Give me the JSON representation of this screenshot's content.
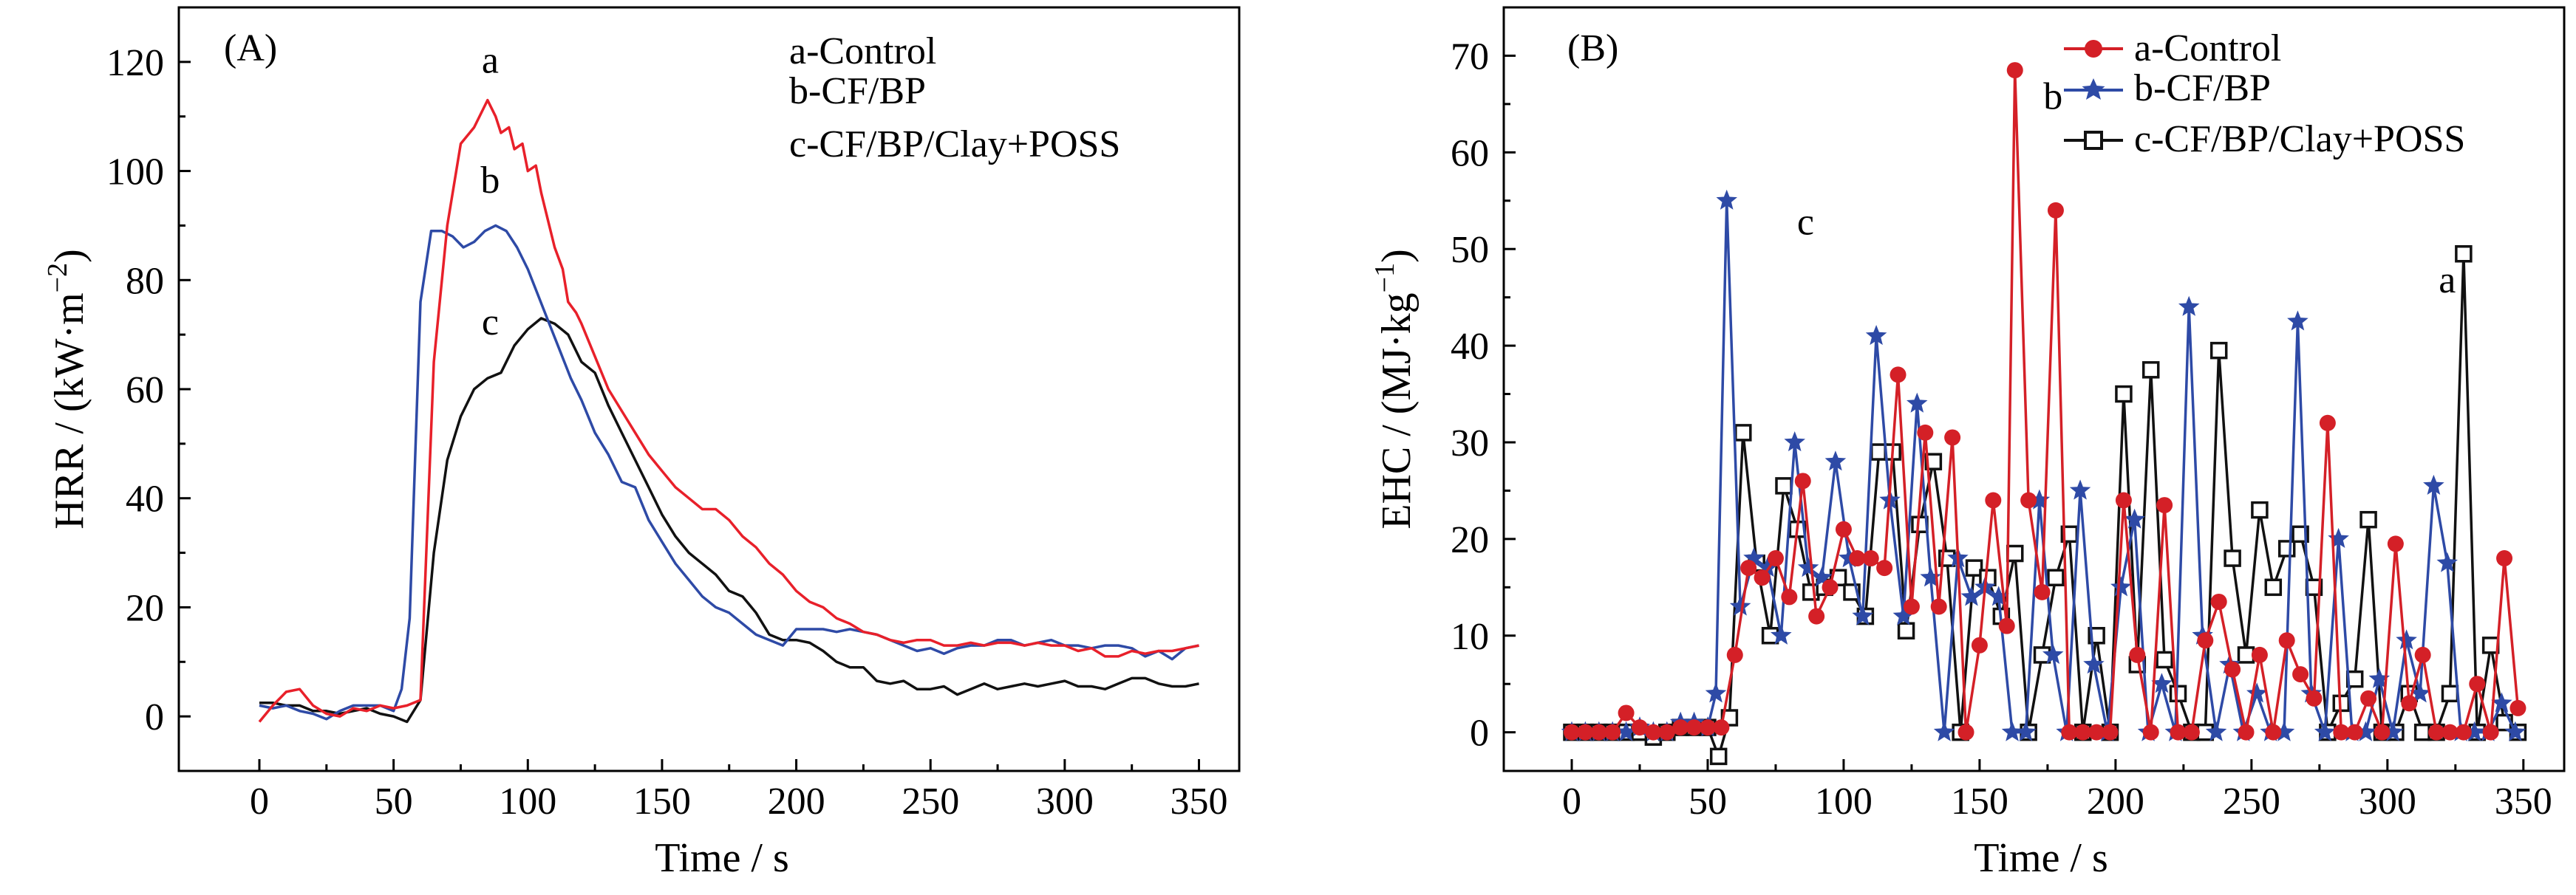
{
  "chart_data": [
    {
      "type": "line",
      "panel_label": "(A)",
      "xlabel": "Time / s",
      "ylabel_base": "HRR / (kW·m",
      "ylabel_sup": "−2",
      "ylabel_end": ")",
      "xlim": [
        -30,
        365
      ],
      "ylim": [
        -10,
        130
      ],
      "xticks": [
        0,
        50,
        100,
        150,
        200,
        250,
        300,
        350
      ],
      "yticks": [
        0,
        20,
        40,
        60,
        80,
        100,
        120
      ],
      "legend": [
        "a-Control",
        "b-CF/BP",
        "c-CF/BP/Clay+POSS"
      ],
      "annotations": [
        {
          "text": "a",
          "x": 86,
          "y": 118
        },
        {
          "text": "b",
          "x": 86,
          "y": 96
        },
        {
          "text": "c",
          "x": 86,
          "y": 70
        }
      ],
      "series": [
        {
          "name": "a-Control",
          "color": "#e8202a",
          "x": [
            0,
            5,
            10,
            15,
            20,
            25,
            30,
            35,
            40,
            45,
            50,
            55,
            60,
            65,
            70,
            75,
            80,
            85,
            88,
            90,
            93,
            95,
            98,
            100,
            103,
            105,
            108,
            110,
            113,
            115,
            118,
            120,
            125,
            130,
            135,
            140,
            145,
            150,
            155,
            160,
            165,
            170,
            175,
            180,
            185,
            190,
            195,
            200,
            205,
            210,
            215,
            220,
            225,
            230,
            235,
            240,
            245,
            250,
            255,
            260,
            265,
            270,
            275,
            280,
            285,
            290,
            295,
            300,
            305,
            310,
            315,
            320,
            325,
            330,
            335,
            340,
            345,
            350
          ],
          "y": [
            -1,
            2,
            4.5,
            5,
            2,
            0.5,
            0,
            1.5,
            1,
            2,
            1.5,
            2,
            3,
            65,
            90,
            105,
            108,
            113,
            110,
            107,
            108,
            104,
            105,
            100,
            101,
            96,
            90,
            86,
            82,
            76,
            74,
            72,
            66,
            60,
            56,
            52,
            48,
            45,
            42,
            40,
            38,
            38,
            36,
            33,
            31,
            28,
            26,
            23,
            21,
            20,
            18,
            17,
            15.5,
            15,
            14,
            13.5,
            14,
            14,
            13,
            13,
            13.5,
            13,
            13.5,
            13.5,
            13,
            13.5,
            13,
            13,
            12,
            12.5,
            11,
            11,
            12,
            11.5,
            12,
            12,
            12.5,
            13
          ]
        },
        {
          "name": "b-CF/BP",
          "color": "#2e4aa6",
          "x": [
            0,
            5,
            10,
            15,
            20,
            25,
            30,
            35,
            40,
            45,
            50,
            53,
            56,
            60,
            64,
            68,
            72,
            76,
            80,
            84,
            88,
            92,
            96,
            100,
            104,
            108,
            112,
            116,
            120,
            125,
            130,
            135,
            140,
            145,
            150,
            155,
            160,
            165,
            170,
            175,
            180,
            185,
            190,
            195,
            200,
            205,
            210,
            215,
            220,
            225,
            230,
            235,
            240,
            245,
            250,
            255,
            260,
            265,
            270,
            275,
            280,
            285,
            290,
            295,
            300,
            305,
            310,
            315,
            320,
            325,
            330,
            335,
            340,
            345,
            350
          ],
          "y": [
            2,
            1.5,
            2,
            1,
            0.5,
            -0.5,
            1,
            2,
            2,
            2,
            1,
            5,
            18,
            76,
            89,
            89,
            88,
            86,
            87,
            89,
            90,
            89,
            86,
            82,
            77,
            72,
            67,
            62,
            58,
            52,
            48,
            43,
            42,
            36,
            32,
            28,
            25,
            22,
            20,
            19,
            17,
            15,
            14,
            13,
            16,
            16,
            16,
            15.5,
            16,
            15.5,
            15,
            14,
            13,
            12,
            12.5,
            11.5,
            12.5,
            13,
            13,
            14,
            14,
            13,
            13.5,
            14,
            13,
            13,
            12.5,
            13,
            13,
            12.5,
            11,
            12,
            10.5,
            12.5,
            13
          ]
        },
        {
          "name": "c-CF/BP/Clay+POSS",
          "color": "#111111",
          "x": [
            0,
            5,
            10,
            15,
            20,
            25,
            30,
            35,
            40,
            45,
            50,
            55,
            60,
            65,
            70,
            75,
            80,
            85,
            90,
            95,
            100,
            105,
            110,
            115,
            120,
            125,
            130,
            135,
            140,
            145,
            150,
            155,
            160,
            165,
            170,
            175,
            180,
            185,
            190,
            195,
            200,
            205,
            210,
            215,
            220,
            225,
            230,
            235,
            240,
            245,
            250,
            255,
            260,
            265,
            270,
            275,
            280,
            285,
            290,
            295,
            300,
            305,
            310,
            315,
            320,
            325,
            330,
            335,
            340,
            345,
            350
          ],
          "y": [
            2.5,
            2.5,
            2,
            2,
            1,
            1,
            0.5,
            1,
            1.5,
            0.5,
            0,
            -1,
            3,
            30,
            47,
            55,
            60,
            62,
            63,
            68,
            71,
            73,
            72,
            70,
            65,
            63,
            57,
            52,
            47,
            42,
            37,
            33,
            30,
            28,
            26,
            23,
            22,
            19,
            15,
            14,
            14,
            13.5,
            12,
            10,
            9,
            9,
            6.5,
            6,
            6.5,
            5,
            5,
            5.5,
            4,
            5,
            6,
            5,
            5.5,
            6,
            5.5,
            6,
            6.5,
            5.5,
            5.5,
            5,
            6,
            7,
            7,
            6,
            5.5,
            5.5,
            6
          ]
        }
      ]
    },
    {
      "type": "line",
      "panel_label": "(B)",
      "xlabel": "Time / s",
      "ylabel_base": "EHC / (MJ·kg",
      "ylabel_sup": "−1",
      "ylabel_end": ")",
      "xlim": [
        -25,
        365
      ],
      "ylim": [
        -4,
        75
      ],
      "xticks": [
        0,
        50,
        100,
        150,
        200,
        250,
        300,
        350
      ],
      "yticks": [
        0,
        10,
        20,
        30,
        40,
        50,
        60,
        70
      ],
      "legend": [
        "a-Control",
        "b-CF/BP",
        "c-CF/BP/Clay+POSS"
      ],
      "annotations": [
        {
          "text": "b",
          "x": 177,
          "y": 64.5
        },
        {
          "text": "c",
          "x": 86,
          "y": 51.5
        },
        {
          "text": "a",
          "x": 322,
          "y": 45.5
        }
      ],
      "series": [
        {
          "name": "a-Control",
          "color": "#d42027",
          "marker": "circle",
          "x": [
            0,
            5,
            10,
            15,
            20,
            25,
            30,
            35,
            40,
            45,
            50,
            55,
            60,
            65,
            70,
            75,
            80,
            85,
            90,
            95,
            100,
            105,
            110,
            115,
            120,
            125,
            130,
            135,
            140,
            145,
            150,
            155,
            160,
            163,
            168,
            173,
            178,
            183,
            188,
            193,
            198,
            203,
            208,
            213,
            218,
            223,
            228,
            233,
            238,
            243,
            248,
            253,
            258,
            263,
            268,
            273,
            278,
            283,
            288,
            293,
            298,
            303,
            308,
            313,
            318,
            323,
            328,
            333,
            338,
            343,
            348
          ],
          "y": [
            0,
            0,
            0,
            0,
            2,
            0.5,
            0,
            0,
            0.5,
            0.5,
            0.5,
            0.5,
            8,
            17,
            16,
            18,
            14,
            26,
            12,
            15,
            21,
            18,
            18,
            17,
            37,
            13,
            31,
            13,
            30.5,
            0,
            9,
            24,
            11,
            68.5,
            24,
            14.5,
            54,
            0,
            0,
            0,
            0,
            24,
            8,
            0,
            23.5,
            0,
            0,
            9.5,
            13.5,
            6.5,
            0,
            8,
            0,
            9.5,
            6,
            3.5,
            32,
            0,
            0,
            3.5,
            0,
            19.5,
            3,
            8,
            0,
            0,
            0,
            5,
            0,
            18,
            2.5
          ]
        },
        {
          "name": "b-CF/BP",
          "color": "#2e4aa6",
          "marker": "star",
          "x": [
            0,
            5,
            10,
            15,
            20,
            25,
            30,
            35,
            40,
            45,
            50,
            53,
            57,
            62,
            67,
            72,
            77,
            82,
            87,
            92,
            97,
            102,
            107,
            112,
            117,
            122,
            127,
            132,
            137,
            142,
            147,
            152,
            157,
            162,
            167,
            172,
            177,
            182,
            187,
            192,
            197,
            202,
            207,
            212,
            217,
            222,
            227,
            232,
            237,
            242,
            247,
            252,
            257,
            262,
            267,
            272,
            277,
            282,
            287,
            292,
            297,
            302,
            307,
            312,
            317,
            322,
            327,
            332,
            337,
            342,
            347
          ],
          "y": [
            0,
            0,
            0,
            0,
            0,
            0.5,
            0,
            0,
            1,
            1,
            0.5,
            4,
            55,
            13,
            18,
            17,
            10,
            30,
            17,
            16,
            28,
            18,
            12,
            41,
            24,
            12,
            34,
            16,
            0,
            18,
            14,
            15,
            14,
            0,
            0,
            24,
            8,
            0,
            25,
            7,
            0,
            15,
            22,
            0,
            5,
            0,
            44,
            10,
            0,
            7,
            0,
            4,
            0,
            0,
            42.5,
            4,
            0,
            20,
            0,
            0,
            5.5,
            0,
            9.5,
            4,
            25.5,
            17.5,
            0,
            0,
            0,
            3,
            0
          ]
        },
        {
          "name": "c-CF/BP/Clay+POSS",
          "color": "#111111",
          "marker": "square",
          "x": [
            0,
            5,
            10,
            15,
            20,
            25,
            30,
            35,
            40,
            45,
            50,
            54,
            58,
            63,
            68,
            73,
            78,
            83,
            88,
            93,
            98,
            103,
            108,
            113,
            118,
            123,
            128,
            133,
            138,
            143,
            148,
            153,
            158,
            163,
            168,
            173,
            178,
            183,
            188,
            193,
            198,
            203,
            208,
            213,
            218,
            223,
            228,
            233,
            238,
            243,
            248,
            253,
            258,
            263,
            268,
            273,
            278,
            283,
            288,
            293,
            298,
            303,
            308,
            313,
            318,
            323,
            328,
            333,
            338,
            343,
            348
          ],
          "y": [
            0,
            0,
            0,
            0,
            0,
            0,
            -0.5,
            0,
            0.5,
            0.5,
            0.5,
            -2.5,
            1.5,
            31,
            17.5,
            10,
            25.5,
            21,
            14.5,
            15,
            16,
            14.5,
            12,
            29,
            29,
            10.5,
            21.5,
            28,
            18,
            0,
            17,
            16,
            12,
            18.5,
            0,
            8,
            16,
            20.5,
            0,
            10,
            0,
            35,
            7,
            37.5,
            7.5,
            4,
            0,
            0,
            39.5,
            18,
            8,
            23,
            15,
            19,
            20.5,
            15,
            0,
            3,
            5.5,
            22,
            0,
            0,
            4,
            0,
            0,
            4,
            49.5,
            0,
            9,
            1,
            0
          ]
        }
      ]
    }
  ]
}
